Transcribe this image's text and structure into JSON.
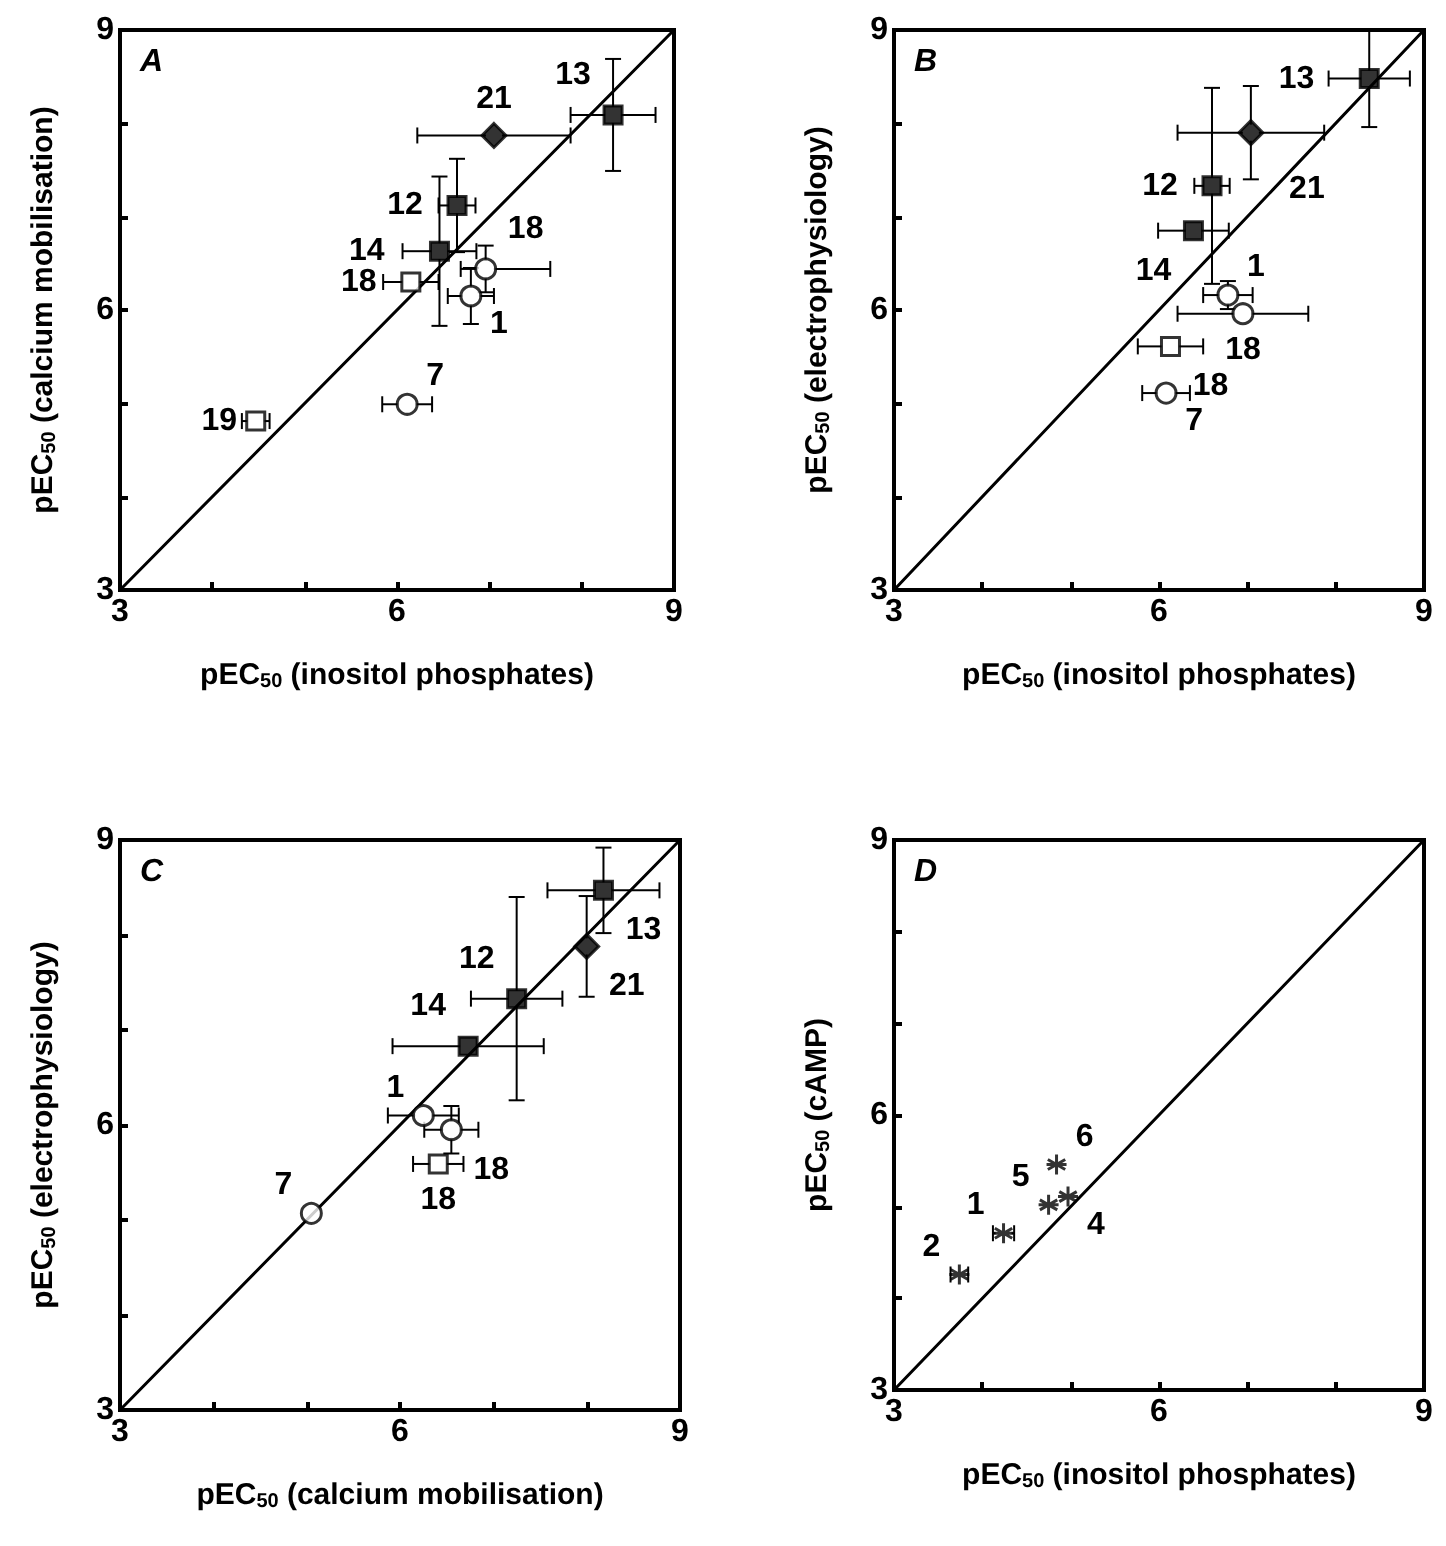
{
  "chart_data": [
    {
      "type": "scatter",
      "title": "A",
      "xlabel": "pEC$_{50}$ (inositol phosphates)",
      "ylabel": "pEC$_{50}$ (calcium mobilisation)",
      "xlim": [
        3,
        9
      ],
      "ylim": [
        3,
        9
      ],
      "xticks": [
        3,
        {
          "value": 4,
          "label": null
        },
        {
          "value": 5,
          "label": null
        },
        6,
        {
          "value": 7,
          "label": null
        },
        {
          "value": 8,
          "label": null
        },
        9
      ],
      "yticks": [
        3,
        {
          "value": 4,
          "label": null
        },
        {
          "value": 5,
          "label": null
        },
        6,
        {
          "value": 7,
          "label": null
        },
        {
          "value": 8,
          "label": null
        },
        9
      ],
      "grid": false,
      "series": [
        {
          "type": "line",
          "marker": "none",
          "line_style": "solid",
          "color": "#000000",
          "x": [
            3,
            9
          ],
          "values": [
            3,
            9
          ]
        },
        {
          "marker": "square",
          "color": "#000000",
          "x": [
            8.34,
            6.65,
            6.46
          ],
          "values": [
            8.09,
            7.12,
            6.63
          ],
          "xerrors": [
            0.46,
            0.2,
            0.4
          ],
          "errors": [
            0.6,
            0.5,
            0.8
          ]
        },
        {
          "marker": "diamond",
          "color": "#000000",
          "x": [
            7.05
          ],
          "values": [
            7.87
          ],
          "xerrors": [
            0.83
          ],
          "errors": [
            null
          ]
        },
        {
          "marker": "square",
          "color": "#ffffff",
          "x": [
            6.15,
            4.47
          ],
          "values": [
            6.3,
            4.81
          ],
          "xerrors": [
            0.3,
            0.15
          ],
          "errors": [
            null,
            null
          ]
        },
        {
          "marker": "circle",
          "color": "#ffffff",
          "x": [
            6.96,
            6.8,
            6.11
          ],
          "values": [
            6.44,
            6.15,
            4.99
          ],
          "xerrors": [
            [
              6.69,
              7.66
            ],
            0.25,
            0.27
          ],
          "errors": [
            0.25,
            0.3,
            null
          ]
        }
      ],
      "annotations": [
        {
          "text": "13",
          "x": 8.34,
          "y": 8.09
        },
        {
          "text": "21",
          "x": 7.05,
          "y": 7.87
        },
        {
          "text": "12",
          "x": 6.65,
          "y": 7.12
        },
        {
          "text": "14",
          "x": 6.46,
          "y": 6.63
        },
        {
          "text": "18",
          "x": 6.15,
          "y": 6.3
        },
        {
          "text": "18",
          "x": 6.96,
          "y": 6.44
        },
        {
          "text": "1",
          "x": 6.8,
          "y": 6.15
        },
        {
          "text": "19",
          "x": 4.47,
          "y": 4.81
        },
        {
          "text": "7",
          "x": 6.11,
          "y": 4.99
        }
      ]
    },
    {
      "type": "scatter",
      "title": "B",
      "xlabel": "pEC$_{50}$ (inositol phosphates)",
      "ylabel": "pEC$_{50}$ (electrophysiology)",
      "xlim": [
        3,
        9
      ],
      "ylim": [
        3,
        9
      ],
      "xticks": [
        3,
        {
          "value": 4,
          "label": null
        },
        {
          "value": 5,
          "label": null
        },
        6,
        {
          "value": 7,
          "label": null
        },
        {
          "value": 8,
          "label": null
        },
        9
      ],
      "yticks": [
        3,
        {
          "value": 4,
          "label": null
        },
        {
          "value": 5,
          "label": null
        },
        6,
        {
          "value": 7,
          "label": null
        },
        {
          "value": 8,
          "label": null
        },
        9
      ],
      "grid": false,
      "series": [
        {
          "type": "line",
          "marker": "none",
          "line_style": "solid",
          "color": "#000000",
          "x": [
            3,
            9
          ],
          "values": [
            3,
            9
          ]
        },
        {
          "marker": "square",
          "color": "#000000",
          "x": [
            8.38,
            6.6,
            6.39
          ],
          "values": [
            8.48,
            7.33,
            6.85
          ],
          "xerrors": [
            0.46,
            0.2,
            0.4
          ],
          "errors": [
            0.52,
            1.05,
            null
          ]
        },
        {
          "marker": "diamond",
          "color": "#000000",
          "x": [
            7.04
          ],
          "values": [
            7.9
          ],
          "xerrors": [
            0.83
          ],
          "errors": [
            0.5
          ]
        },
        {
          "marker": "square",
          "color": "#ffffff",
          "x": [
            6.13
          ],
          "values": [
            5.61
          ],
          "xerrors": [
            0.37
          ],
          "errors": [
            null
          ]
        },
        {
          "marker": "circle",
          "color": "#ffffff",
          "x": [
            6.78,
            6.95,
            6.08
          ],
          "values": [
            6.16,
            5.96,
            5.11
          ],
          "xerrors": [
            0.28,
            0.74,
            0.27
          ],
          "errors": [
            0.15,
            null,
            null
          ]
        }
      ],
      "annotations": [
        {
          "text": "13",
          "x": 8.38,
          "y": 8.48
        },
        {
          "text": "21",
          "x": 7.04,
          "y": 7.9
        },
        {
          "text": "12",
          "x": 6.6,
          "y": 7.33
        },
        {
          "text": "14",
          "x": 6.39,
          "y": 6.85
        },
        {
          "text": "1",
          "x": 6.78,
          "y": 6.16
        },
        {
          "text": "18",
          "x": 6.95,
          "y": 5.96
        },
        {
          "text": "18",
          "x": 6.13,
          "y": 5.61
        },
        {
          "text": "7",
          "x": 6.08,
          "y": 5.11
        }
      ]
    },
    {
      "type": "scatter",
      "title": "C",
      "xlabel": "pEC$_{50}$ (calcium mobilisation)",
      "ylabel": "pEC$_{50}$ (electrophysiology)",
      "xlim": [
        3,
        9
      ],
      "ylim": [
        3,
        9
      ],
      "xticks": [
        3,
        {
          "value": 4,
          "label": null
        },
        {
          "value": 5,
          "label": null
        },
        6,
        {
          "value": 7,
          "label": null
        },
        {
          "value": 8,
          "label": null
        },
        9
      ],
      "yticks": [
        3,
        {
          "value": 4,
          "label": null
        },
        {
          "value": 5,
          "label": null
        },
        6,
        {
          "value": 7,
          "label": null
        },
        {
          "value": 8,
          "label": null
        },
        9
      ],
      "grid": false,
      "series": [
        {
          "type": "line",
          "marker": "none",
          "line_style": "solid",
          "color": "#000000",
          "x": [
            3,
            9
          ],
          "values": [
            3,
            9
          ]
        },
        {
          "marker": "square",
          "color": "#000000",
          "x": [
            8.18,
            7.25,
            6.73
          ],
          "values": [
            8.47,
            7.33,
            6.83
          ],
          "xerrors": [
            0.6,
            0.49,
            0.81
          ],
          "errors": [
            0.45,
            1.07,
            null
          ]
        },
        {
          "marker": "diamond",
          "color": "#000000",
          "x": [
            8.0
          ],
          "values": [
            7.88
          ],
          "xerrors": [
            null
          ],
          "errors": [
            0.53
          ]
        },
        {
          "marker": "square",
          "color": "#ffffff",
          "x": [
            6.41
          ],
          "values": [
            5.59
          ],
          "xerrors": [
            0.27
          ],
          "errors": [
            null
          ]
        },
        {
          "marker": "circle",
          "color": "#ffffff",
          "x": [
            6.25,
            6.55,
            5.05
          ],
          "values": [
            6.1,
            5.95,
            5.07
          ],
          "xerrors": [
            0.38,
            0.29,
            null
          ],
          "errors": [
            null,
            0.25,
            null
          ]
        }
      ],
      "annotations": [
        {
          "text": "13",
          "x": 8.18,
          "y": 8.47
        },
        {
          "text": "21",
          "x": 8.0,
          "y": 7.88
        },
        {
          "text": "12",
          "x": 7.25,
          "y": 7.33
        },
        {
          "text": "14",
          "x": 6.73,
          "y": 6.83
        },
        {
          "text": "1",
          "x": 6.25,
          "y": 6.1
        },
        {
          "text": "18",
          "x": 6.55,
          "y": 5.95
        },
        {
          "text": "18",
          "x": 6.41,
          "y": 5.59
        },
        {
          "text": "7",
          "x": 5.05,
          "y": 5.07
        }
      ]
    },
    {
      "type": "scatter",
      "title": "D",
      "xlabel": "pEC$_{50}$ (inositol phosphates)",
      "ylabel": "pEC$_{50}$ (cAMP)",
      "xlim": [
        3,
        9
      ],
      "ylim": [
        3,
        9
      ],
      "xticks": [
        3,
        {
          "value": 4,
          "label": null
        },
        {
          "value": 5,
          "label": null
        },
        6,
        {
          "value": 7,
          "label": null
        },
        {
          "value": 8,
          "label": null
        },
        9
      ],
      "yticks": [
        3,
        {
          "value": 4,
          "label": null
        },
        {
          "value": 5,
          "label": null
        },
        6,
        {
          "value": 7,
          "label": null
        },
        {
          "value": 8,
          "label": null
        },
        9
      ],
      "grid": false,
      "series": [
        {
          "type": "line",
          "marker": "none",
          "line_style": "solid",
          "color": "#000000",
          "x": [
            3,
            9
          ],
          "values": [
            3,
            9
          ]
        },
        {
          "marker": "cross",
          "color": "#000000",
          "x": [
            3.74,
            4.24,
            4.75,
            4.97,
            4.84
          ],
          "values": [
            4.26,
            4.71,
            5.02,
            5.11,
            5.46
          ],
          "xerrors": [
            0.1,
            0.12,
            null,
            null,
            null
          ],
          "errors": [
            null,
            null,
            null,
            null,
            null
          ]
        }
      ],
      "annotations": [
        {
          "text": "2",
          "x": 3.74,
          "y": 4.26
        },
        {
          "text": "1",
          "x": 4.24,
          "y": 4.71
        },
        {
          "text": "5",
          "x": 4.75,
          "y": 5.02
        },
        {
          "text": "4",
          "x": 4.97,
          "y": 5.11
        },
        {
          "text": "6",
          "x": 4.84,
          "y": 5.46
        }
      ]
    }
  ]
}
